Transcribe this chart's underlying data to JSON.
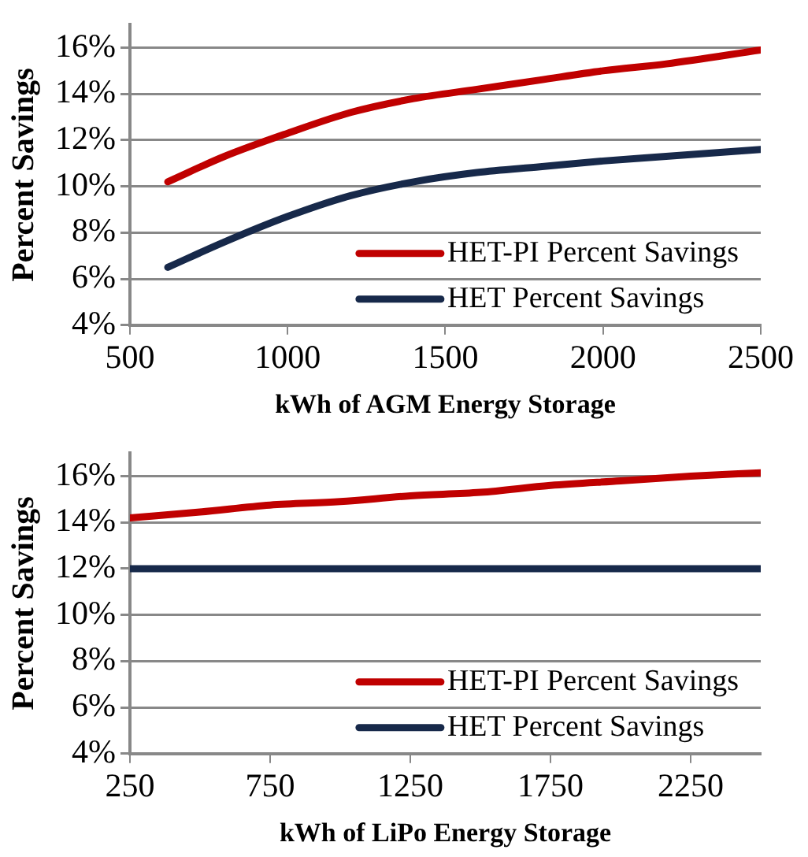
{
  "chart_data": [
    {
      "type": "line",
      "xlabel": "kWh of AGM Energy Storage",
      "ylabel": "Percent Savings",
      "series": [
        {
          "name": "HET-PI Percent Savings",
          "color": "#c00000",
          "x": [
            620,
            800,
            1000,
            1200,
            1400,
            1600,
            1800,
            2000,
            2200,
            2500
          ],
          "values": [
            10.2,
            11.3,
            12.3,
            13.2,
            13.8,
            14.2,
            14.6,
            15.0,
            15.3,
            15.9
          ]
        },
        {
          "name": "HET Percent Savings",
          "color": "#17294a",
          "x": [
            620,
            800,
            1000,
            1200,
            1400,
            1600,
            1800,
            2000,
            2200,
            2500
          ],
          "values": [
            6.5,
            7.6,
            8.7,
            9.6,
            10.2,
            10.6,
            10.85,
            11.1,
            11.3,
            11.6
          ]
        }
      ],
      "xlim": [
        500,
        2500
      ],
      "xticks": [
        500,
        1000,
        1500,
        2000,
        2500
      ],
      "ylim": [
        4,
        17
      ],
      "yticks": [
        {
          "value": 4,
          "label": "4%"
        },
        {
          "value": 6,
          "label": "6%"
        },
        {
          "value": 8,
          "label": "8%"
        },
        {
          "value": 10,
          "label": "10%"
        },
        {
          "value": 12,
          "label": "12%"
        },
        {
          "value": 14,
          "label": "14%"
        },
        {
          "value": 16,
          "label": "16%"
        }
      ],
      "grid": "y",
      "legend": "bottom right",
      "marker": "none",
      "line_style": "solid"
    },
    {
      "type": "line",
      "xlabel": "kWh of LiPo Energy Storage",
      "ylabel": "Percent Savings",
      "series": [
        {
          "name": "HET-PI Percent Savings",
          "color": "#c00000",
          "x": [
            250,
            500,
            750,
            1000,
            1250,
            1500,
            1750,
            2000,
            2250,
            2500
          ],
          "values": [
            14.2,
            14.45,
            14.75,
            14.9,
            15.15,
            15.3,
            15.6,
            15.8,
            16.0,
            16.15
          ]
        },
        {
          "name": "HET Percent Savings",
          "color": "#17294a",
          "x": [
            250,
            2500
          ],
          "values": [
            12,
            12
          ]
        }
      ],
      "xlim": [
        250,
        2500
      ],
      "xticks": [
        250,
        750,
        1250,
        1750,
        2250
      ],
      "ylim": [
        4,
        17
      ],
      "yticks": [
        {
          "value": 4,
          "label": "4%"
        },
        {
          "value": 6,
          "label": "6%"
        },
        {
          "value": 8,
          "label": "8%"
        },
        {
          "value": 10,
          "label": "10%"
        },
        {
          "value": 12,
          "label": "12%"
        },
        {
          "value": 14,
          "label": "14%"
        },
        {
          "value": 16,
          "label": "16%"
        }
      ],
      "grid": "y",
      "legend": "bottom right",
      "marker": "none",
      "line_style": "solid"
    }
  ]
}
